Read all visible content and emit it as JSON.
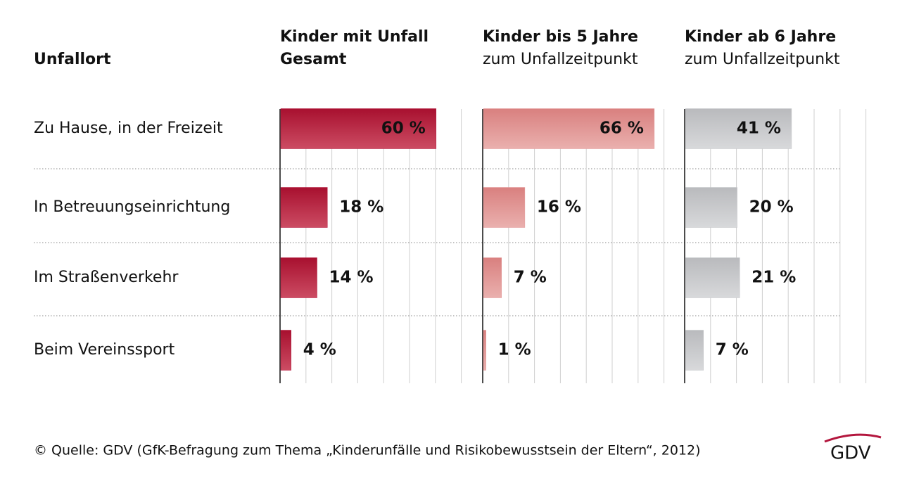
{
  "chart_data": {
    "type": "bar",
    "orientation": "horizontal",
    "category_header": "Unfallort",
    "categories": [
      "Zu Hause, in der Freizeit",
      "In Betreuungseinrichtung",
      "Im Straßenverkehr",
      "Beim Vereinssport"
    ],
    "series": [
      {
        "name": "Kinder mit Unfall",
        "subname": "Gesamt",
        "color": "#b3163d",
        "values": [
          60,
          18,
          14,
          4
        ],
        "value_labels": [
          "60 %",
          "18 %",
          "14 %",
          "4 %"
        ]
      },
      {
        "name": "Kinder bis 5 Jahre",
        "subname": "zum Unfallzeitpunkt",
        "color": "#e39a9a",
        "values": [
          66,
          16,
          7,
          1
        ],
        "value_labels": [
          "66 %",
          "16 %",
          "7 %",
          "1 %"
        ]
      },
      {
        "name": "Kinder ab 6 Jahre",
        "subname": "zum Unfallzeitpunkt",
        "color": "#c6c7ca",
        "values": [
          41,
          20,
          21,
          7
        ],
        "value_labels": [
          "41 %",
          "20 %",
          "21 %",
          "7 %"
        ]
      }
    ],
    "xlim": [
      0,
      78
    ],
    "xticks": [
      0,
      10,
      20,
      30,
      40,
      50,
      60,
      70
    ],
    "grid": true,
    "source": "© Quelle: GDV (GfK-Befragung zum Thema „Kinderunfälle und Risikobewusstsein der Eltern“, 2012)",
    "logo": "GDV"
  }
}
